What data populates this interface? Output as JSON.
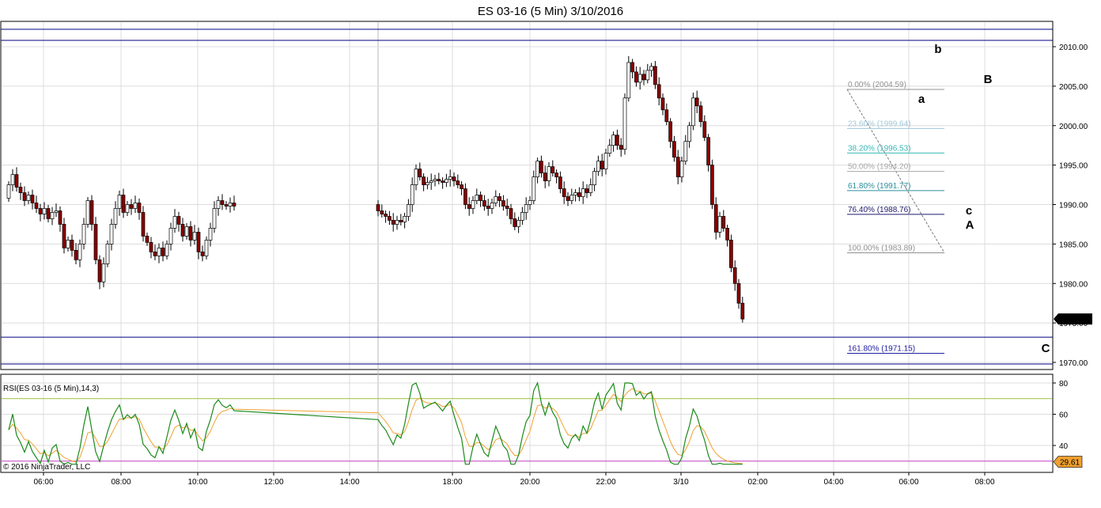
{
  "chart_data": {
    "type": "candlestick",
    "title": "ES 03-16 (5 Min)  3/10/2016",
    "price_axis": {
      "range": [
        1968,
        2012
      ],
      "ticks": [
        2010,
        2005,
        2000,
        1995,
        1990,
        1985,
        1980,
        1975,
        1970
      ],
      "tick_labels": [
        "2010.00",
        "2005.00",
        "2000.00",
        "1995.00",
        "1990.00",
        "1985.00",
        "1980.00",
        "1975.00",
        "1970.00"
      ],
      "last_price_label": "1975.50"
    },
    "time_axis": {
      "labels": [
        "06:00",
        "08:00",
        "10:00",
        "12:00",
        "14:00",
        "18:00",
        "20:00",
        "22:00",
        "3/10",
        "02:00",
        "04:00",
        "06:00",
        "08:00"
      ]
    },
    "horizontal_lines": [
      2012.2,
      2010.8,
      1973.2,
      1969.8
    ],
    "segments": [
      {
        "start": 1990.8,
        "points": [
          1992.5,
          1993.8,
          1992.2,
          1991.5,
          1990.5,
          1991.2,
          1990.2,
          1989.5,
          1988.8,
          1989.5,
          1988.2,
          1989.0,
          1989.2,
          1987.5,
          1984.5,
          1985.5,
          1984.2,
          1983.0,
          1985.0,
          1987.5,
          1990.5,
          1987.5,
          1983.0,
          1980.2,
          1982.5,
          1985.0,
          1987.5,
          1989.5,
          1991.2,
          1989.0,
          1990.0,
          1989.5,
          1990.2,
          1989.0,
          1986.0,
          1985.2,
          1984.0,
          1983.5,
          1984.5,
          1983.5,
          1985.0,
          1987.0,
          1988.5,
          1987.5,
          1986.0,
          1987.2,
          1985.5,
          1986.5,
          1984.0,
          1983.5,
          1985.5,
          1987.0,
          1989.5,
          1990.5,
          1990.0,
          1989.8,
          1990.2,
          1989.8
        ]
      },
      {
        "start": 1990.0,
        "points": [
          1989.2,
          1988.8,
          1988.5,
          1988.0,
          1987.5,
          1988.0,
          1987.8,
          1988.5,
          1990.0,
          1992.5,
          1994.5,
          1993.5,
          1992.5,
          1992.8,
          1993.0,
          1993.2,
          1993.0,
          1992.8,
          1993.2,
          1993.5,
          1993.0,
          1992.5,
          1992.0,
          1990.0,
          1989.5,
          1990.5,
          1991.2,
          1990.5,
          1989.8,
          1989.5,
          1990.2,
          1991.0,
          1990.5,
          1989.8,
          1989.5,
          1988.2,
          1987.2,
          1988.0,
          1989.0,
          1990.0,
          1990.5,
          1993.5,
          1995.5,
          1994.0,
          1993.0,
          1994.8,
          1994.0,
          1993.5,
          1992.0,
          1991.0,
          1990.5,
          1991.2,
          1991.5,
          1991.0,
          1992.0,
          1991.5,
          1992.5,
          1994.2,
          1995.5,
          1994.5,
          1996.5,
          1997.5,
          1998.8,
          1997.5,
          1997.0,
          2003.5,
          2008.0,
          2006.8,
          2005.5,
          2006.5,
          2005.8,
          2007.0,
          2007.5,
          2005.2,
          2003.5,
          2002.0,
          2000.5,
          1998.0,
          1996.0,
          1993.5,
          1995.5,
          1998.0,
          2000.0,
          2003.5,
          2002.5,
          2000.5,
          1998.5,
          1995.0,
          1990.0,
          1986.5,
          1988.5,
          1987.0,
          1985.5,
          1982.0,
          1980.0,
          1977.5,
          1975.5
        ]
      }
    ],
    "fibonacci": {
      "levels": [
        {
          "label": "0.00% (2004.59)",
          "color": "#909090"
        },
        {
          "label": "23.60% (1999.64)",
          "color": "#9fc7d6"
        },
        {
          "label": "38.20% (1996.53)",
          "color": "#39b6b6"
        },
        {
          "label": "50.00% (1994.20)",
          "color": "#a8a8a8"
        },
        {
          "label": "61.80% (1991.77)",
          "color": "#2b8f9c"
        },
        {
          "label": "76.40% (1988.76)",
          "color": "#1c1c6e"
        },
        {
          "label": "100.00% (1983.89)",
          "color": "#909090"
        },
        {
          "label": "161.80% (1971.15)",
          "color": "#2020a0"
        }
      ]
    },
    "wave_labels": [
      "a",
      "b",
      "c",
      "A",
      "B",
      "C"
    ],
    "rsi": {
      "label": "RSI(ES 03-16 (5 Min),14,3)",
      "range": [
        25,
        85
      ],
      "ticks": [
        80,
        60,
        40
      ],
      "overbought": 70,
      "oversold": 30,
      "last_value_label": "29.61",
      "colors": {
        "rsi": "#1a8a1a",
        "avg": "#f0a030",
        "upper": "#9fbf3f",
        "lower": "#c040c0"
      }
    },
    "colors": {
      "up": "#ffffff",
      "down": "#8b0000",
      "wick": "#000000",
      "frame_line": "#000080",
      "grid": "#dcdcdc"
    }
  },
  "copyright": "© 2016 NinjaTrader, LLC"
}
